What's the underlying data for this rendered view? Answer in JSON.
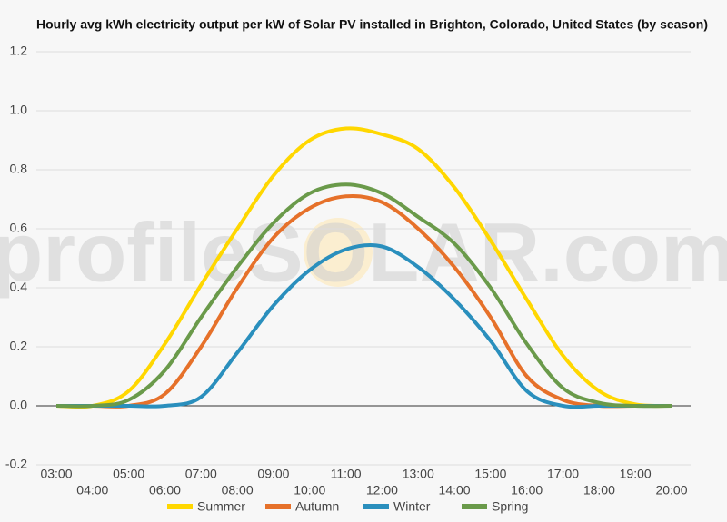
{
  "chart_data": {
    "type": "line",
    "title": "Hourly avg kWh electricity output per kW of Solar PV installed in Brighton, Colorado, United States (by season)",
    "watermark": "profileSOLAR.com",
    "categories": [
      "03:00",
      "04:00",
      "05:00",
      "06:00",
      "07:00",
      "08:00",
      "09:00",
      "10:00",
      "11:00",
      "12:00",
      "13:00",
      "14:00",
      "15:00",
      "16:00",
      "17:00",
      "18:00",
      "19:00",
      "20:00"
    ],
    "series": [
      {
        "name": "Summer",
        "color": "#ffd700",
        "values": [
          0,
          0,
          0.05,
          0.21,
          0.41,
          0.6,
          0.78,
          0.9,
          0.94,
          0.92,
          0.87,
          0.74,
          0.56,
          0.36,
          0.17,
          0.05,
          0.005,
          0
        ]
      },
      {
        "name": "Autumn",
        "color": "#e6712a",
        "values": [
          0,
          0,
          0,
          0.04,
          0.2,
          0.4,
          0.57,
          0.67,
          0.71,
          0.69,
          0.6,
          0.47,
          0.3,
          0.1,
          0.02,
          0,
          0,
          0
        ]
      },
      {
        "name": "Winter",
        "color": "#2a8fbd",
        "values": [
          0,
          0,
          0,
          0,
          0.03,
          0.18,
          0.34,
          0.46,
          0.53,
          0.54,
          0.47,
          0.36,
          0.22,
          0.05,
          0,
          0,
          0,
          0
        ]
      },
      {
        "name": "Spring",
        "color": "#6a9a4a",
        "values": [
          0,
          0,
          0.02,
          0.12,
          0.3,
          0.47,
          0.62,
          0.72,
          0.75,
          0.72,
          0.64,
          0.55,
          0.4,
          0.21,
          0.06,
          0.01,
          0,
          0
        ]
      }
    ],
    "ylim": [
      -0.2,
      1.2
    ],
    "yticks": [
      -0.2,
      {
        "value": 0,
        "label": "0.0"
      },
      0.2,
      0.4,
      0.6,
      0.8,
      {
        "value": 1,
        "label": "1.0"
      },
      1.2
    ],
    "grid": true,
    "legend": "bottom"
  }
}
